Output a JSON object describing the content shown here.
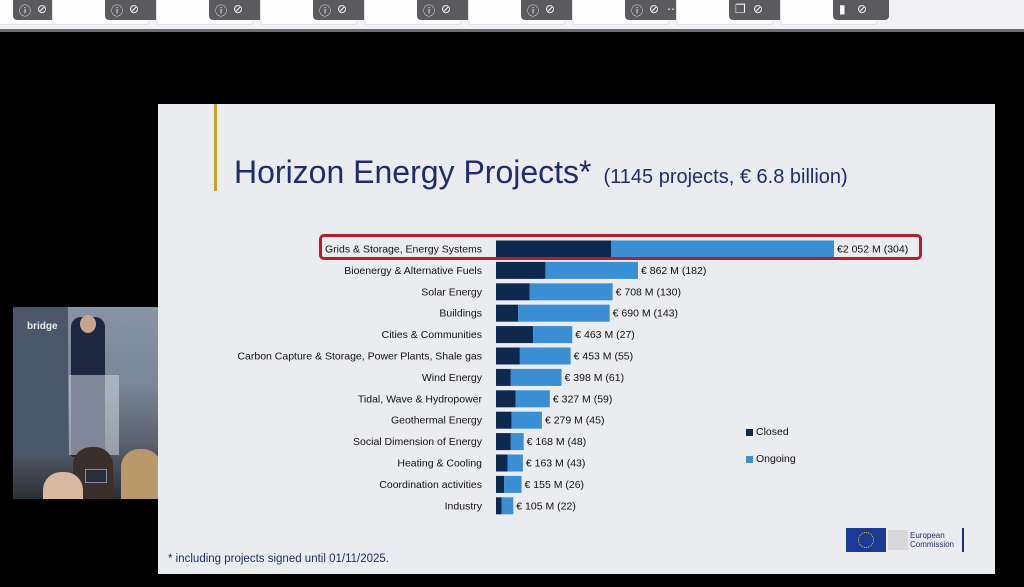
{
  "toolbar": {
    "tiles": [
      {
        "icons": [
          "info-icon",
          "mic-muted-icon"
        ]
      },
      {
        "icons": [
          "info-icon",
          "mic-muted-icon"
        ]
      },
      {
        "icons": [
          "info-icon",
          "mic-muted-icon"
        ]
      },
      {
        "icons": [
          "info-icon",
          "mic-muted-icon"
        ]
      },
      {
        "icons": [
          "info-icon",
          "mic-muted-icon"
        ]
      },
      {
        "icons": [
          "info-icon",
          "mic-muted-icon"
        ]
      },
      {
        "icons": [
          "info-icon",
          "mic-muted-icon",
          "more-icon"
        ]
      },
      {
        "icons": [
          "copy-icon",
          "mic-muted-icon"
        ]
      },
      {
        "icons": [
          "signal-icon",
          "mic-muted-icon"
        ]
      }
    ]
  },
  "slide": {
    "title_main": "Horizon Energy Projects*",
    "title_sub": "(1145 projects, € 6.8 billion)",
    "footnote": "* including projects signed until 01/11/2025.",
    "logo_line1": "European",
    "logo_line2": "Commission"
  },
  "camera": {
    "wall_text": "bridge"
  },
  "colors": {
    "closed": "#0d2a4e",
    "ongoing": "#3a8fd4",
    "highlight": "#b3202a",
    "title": "#1f2d6e"
  },
  "chart_data": {
    "type": "bar",
    "orientation": "horizontal",
    "stacked": true,
    "categories": [
      "Grids & Storage, Energy Systems",
      "Bioenergy & Alternative Fuels",
      "Solar Energy",
      "Buildings",
      "Cities & Communities",
      "Carbon Capture & Storage, Power Plants, Shale gas",
      "Wind Energy",
      "Tidal, Wave & Hydropower",
      "Geothermal Energy",
      "Social Dimension of Energy",
      "Heating & Cooling",
      "Coordination activities",
      "Industry"
    ],
    "series": [
      {
        "name": "Closed",
        "values": [
          700,
          300,
          205,
          135,
          225,
          145,
          90,
          120,
          95,
          90,
          70,
          50,
          35
        ]
      },
      {
        "name": "Ongoing",
        "values": [
          1352,
          562,
          503,
          555,
          238,
          308,
          308,
          207,
          184,
          78,
          93,
          105,
          70
        ]
      }
    ],
    "data_labels": [
      "€2 052 M (304)",
      "€ 862 M (182)",
      "€ 708 M (130)",
      "€ 690 M (143)",
      "€ 463 M (27)",
      "€ 453 M (55)",
      "€ 398 M (61)",
      "€ 327 M (59)",
      "€ 279 M (45)",
      "€ 168 M (48)",
      "€ 163 M (43)",
      "€ 155 M (26)",
      "€ 105 M (22)"
    ],
    "legend": [
      "Closed",
      "Ongoing"
    ],
    "legend_position": "right",
    "highlighted_category": "Grids & Storage, Energy Systems",
    "xlim": [
      0,
      2052
    ]
  }
}
